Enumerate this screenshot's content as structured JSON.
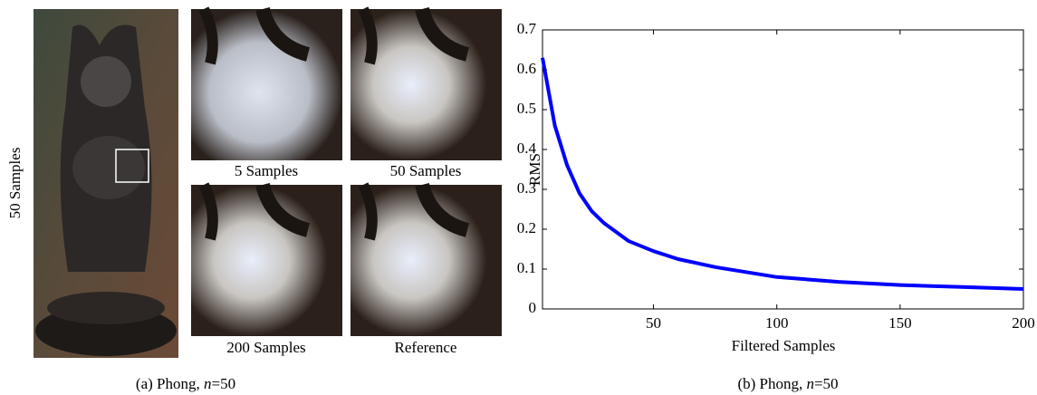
{
  "figure": {
    "side_label": "50 Samples",
    "thumbnails": [
      "5 Samples",
      "50 Samples",
      "200 Samples",
      "Reference"
    ],
    "caption_a": {
      "prefix": "(a) Phong, ",
      "var": "n",
      "suffix": "=50"
    },
    "caption_b": {
      "prefix": "(b) Phong, ",
      "var": "n",
      "suffix": "=50"
    }
  },
  "chart_data": {
    "type": "line",
    "xlabel": "Filtered Samples",
    "ylabel": "RMS",
    "x": [
      5,
      10,
      15,
      20,
      25,
      30,
      40,
      50,
      60,
      75,
      100,
      125,
      150,
      175,
      200
    ],
    "series": [
      {
        "name": "RMS",
        "color": "#0000ff",
        "values": [
          0.63,
          0.46,
          0.36,
          0.29,
          0.245,
          0.215,
          0.17,
          0.145,
          0.125,
          0.105,
          0.08,
          0.068,
          0.06,
          0.055,
          0.05
        ]
      }
    ],
    "xlim": [
      5,
      200
    ],
    "xticks": [
      50,
      100,
      150,
      200
    ],
    "ylim": [
      0,
      0.7
    ],
    "yticks": [
      0,
      0.1,
      0.2,
      0.3,
      0.4,
      0.5,
      0.6,
      0.7
    ]
  }
}
